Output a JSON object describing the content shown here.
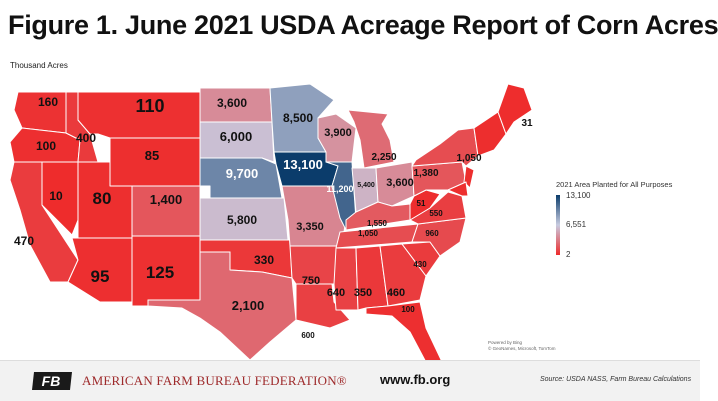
{
  "title": "Figure 1. June 2021 USDA Acreage Report of Corn Acres",
  "unit_label": "Thousand Acres",
  "legend": {
    "title": "2021 Area Planted for All Purposes",
    "max": "13,100",
    "mid": "6,551",
    "min": "2",
    "colors": {
      "high": "#0b3c6b",
      "mid": "#c7cbe0",
      "low": "#ee2b2b"
    }
  },
  "map_attribution": {
    "line1": "Powered by Bing",
    "line2": "© GeoNames, Microsoft, TomTom"
  },
  "states": [
    {
      "id": "WA",
      "label": "160",
      "value": 160
    },
    {
      "id": "OR",
      "label": "100",
      "value": 100
    },
    {
      "id": "CA",
      "label": "470",
      "value": 470
    },
    {
      "id": "ID",
      "label": "400",
      "value": 400
    },
    {
      "id": "NV",
      "label": "10",
      "value": 10
    },
    {
      "id": "MT",
      "label": "110",
      "value": 110
    },
    {
      "id": "WY",
      "label": "85",
      "value": 85
    },
    {
      "id": "UT",
      "label": "80",
      "value": 80
    },
    {
      "id": "AZ",
      "label": "95",
      "value": 95
    },
    {
      "id": "CO",
      "label": "1,400",
      "value": 1400
    },
    {
      "id": "NM",
      "label": "125",
      "value": 125
    },
    {
      "id": "ND",
      "label": "3,600",
      "value": 3600
    },
    {
      "id": "SD",
      "label": "6,000",
      "value": 6000
    },
    {
      "id": "NE",
      "label": "9,700",
      "value": 9700
    },
    {
      "id": "KS",
      "label": "5,800",
      "value": 5800
    },
    {
      "id": "OK",
      "label": "330",
      "value": 330
    },
    {
      "id": "TX",
      "label": "2,100",
      "value": 2100
    },
    {
      "id": "MN",
      "label": "8,500",
      "value": 8500
    },
    {
      "id": "IA",
      "label": "13,100",
      "value": 13100
    },
    {
      "id": "MO",
      "label": "3,350",
      "value": 3350
    },
    {
      "id": "AR",
      "label": "750",
      "value": 750
    },
    {
      "id": "LA",
      "label": "600",
      "value": 600
    },
    {
      "id": "WI",
      "label": "3,900",
      "value": 3900
    },
    {
      "id": "IL",
      "label": "11,200",
      "value": 11200
    },
    {
      "id": "MI",
      "label": "2,250",
      "value": 2250
    },
    {
      "id": "IN",
      "label": "5,400",
      "value": 5400
    },
    {
      "id": "OH",
      "label": "3,600",
      "value": 3600
    },
    {
      "id": "KY",
      "label": "1,550",
      "value": 1550
    },
    {
      "id": "TN",
      "label": "1,050",
      "value": 1050
    },
    {
      "id": "MS",
      "label": "640",
      "value": 640
    },
    {
      "id": "AL",
      "label": "350",
      "value": 350
    },
    {
      "id": "GA",
      "label": "460",
      "value": 460
    },
    {
      "id": "FL",
      "label": "100",
      "value": 100
    },
    {
      "id": "SC",
      "label": "430",
      "value": 430
    },
    {
      "id": "NC",
      "label": "960",
      "value": 960
    },
    {
      "id": "VA",
      "label": "550",
      "value": 550
    },
    {
      "id": "WV",
      "label": "51",
      "value": 51
    },
    {
      "id": "PA",
      "label": "1,380",
      "value": 1380
    },
    {
      "id": "NY",
      "label": "1,050",
      "value": 1050
    },
    {
      "id": "ME",
      "label": "31",
      "value": 31
    }
  ],
  "footer": {
    "logo_text": "FB",
    "organization": "AMERICAN FARM BUREAU FEDERATION®",
    "website": "www.fb.org",
    "source": "Source: USDA NASS, Farm Bureau Calculations"
  }
}
